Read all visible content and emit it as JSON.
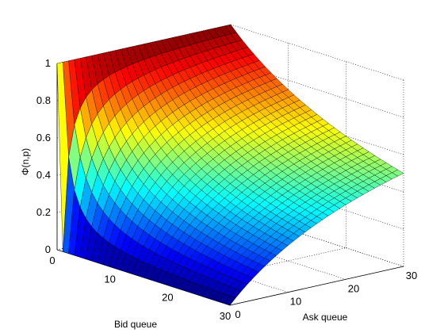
{
  "chart_data": {
    "type": "surface",
    "colormap": "jet",
    "grid": true,
    "xlabel": "Bid queue",
    "ylabel": "Ask queue",
    "zlabel": "Φ(n,p)",
    "xlim": [
      0,
      30
    ],
    "ylim": [
      0,
      30
    ],
    "zlim": [
      0,
      1
    ],
    "x_ticks": [
      "0",
      "10",
      "20",
      "30"
    ],
    "y_ticks": [
      "0",
      "10",
      "20",
      "30"
    ],
    "z_ticks": [
      "0",
      "0.2",
      "0.4",
      "0.6",
      "0.8",
      "1"
    ],
    "surface_samples": [
      {
        "bid": 0,
        "ask": 0,
        "value": 0.5
      },
      {
        "bid": 0,
        "ask": 30,
        "value": 1.0
      },
      {
        "bid": 1,
        "ask": 30,
        "value": 1.0
      },
      {
        "bid": 5,
        "ask": 30,
        "value": 0.86
      },
      {
        "bid": 30,
        "ask": 30,
        "value": 0.5
      },
      {
        "bid": 30,
        "ask": 0,
        "value": 0.0
      },
      {
        "bid": 30,
        "ask": 1,
        "value": 0.0
      }
    ]
  }
}
